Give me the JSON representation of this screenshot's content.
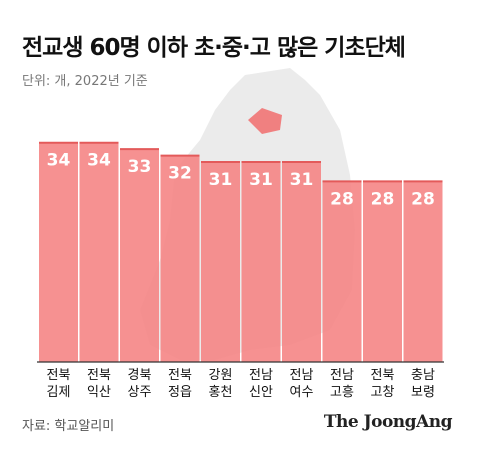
{
  "chart_data": {
    "type": "bar",
    "title": "전교생 60명 이하 초·중·고 많은 기초단체",
    "subtitle": "단위: 개, 2022년 기준",
    "categories": [
      "전북\n김제",
      "전북\n익산",
      "경북\n상주",
      "전북\n정읍",
      "강원\n홍천",
      "전남\n신안",
      "전남\n여수",
      "전남\n고흥",
      "전북\n고창",
      "충남\n보령"
    ],
    "values": [
      34,
      34,
      33,
      32,
      31,
      31,
      31,
      28,
      28,
      28
    ],
    "color": "#f58585",
    "source": "자료: 학교알리미",
    "brand": "The JoongAng"
  }
}
